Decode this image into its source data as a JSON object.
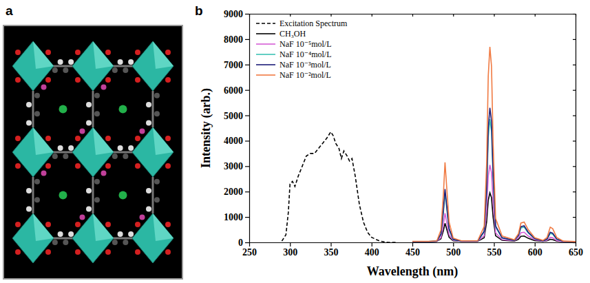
{
  "panel_labels": [
    "a",
    "b"
  ],
  "chart_data": {
    "type": "line",
    "x_label": "Wavelength (nm)",
    "y_label": "Intensity (arb.)",
    "xlim": [
      250,
      650
    ],
    "xticks": [
      250,
      300,
      350,
      400,
      450,
      500,
      550,
      600,
      650
    ],
    "ylim": [
      0,
      9000
    ],
    "yticks": [
      0,
      1000,
      2000,
      3000,
      4000,
      5000,
      6000,
      7000,
      8000,
      9000
    ],
    "grid": false,
    "legend": "upper left",
    "series": [
      {
        "name": "Excitation Spectrum",
        "color": "#000000",
        "line_style": "dashed",
        "x": [
          290,
          295,
          298,
          300,
          303,
          306,
          310,
          315,
          320,
          325,
          330,
          335,
          340,
          345,
          350,
          353,
          356,
          360,
          363,
          366,
          370,
          373,
          376,
          380,
          385,
          390,
          395,
          400,
          410,
          420,
          430
        ],
        "values": [
          50,
          300,
          1200,
          2300,
          2400,
          2200,
          2600,
          3000,
          3400,
          3500,
          3500,
          3700,
          3900,
          4100,
          4350,
          4200,
          3900,
          3700,
          3300,
          3600,
          3400,
          3200,
          3300,
          2600,
          1500,
          800,
          400,
          200,
          50,
          0,
          0
        ]
      },
      {
        "name": "CH₃OH",
        "color": "#000000",
        "line_style": "solid",
        "x": [
          450,
          470,
          480,
          485,
          488,
          490,
          492,
          495,
          500,
          510,
          530,
          538,
          541,
          543,
          545,
          547,
          549,
          552,
          560,
          575,
          580,
          583,
          587,
          592,
          600,
          610,
          615,
          619,
          622,
          627,
          635,
          650
        ],
        "values": [
          30,
          30,
          40,
          140,
          460,
          750,
          530,
          200,
          60,
          40,
          40,
          180,
          800,
          1660,
          1950,
          1760,
          980,
          260,
          80,
          50,
          120,
          240,
          250,
          160,
          70,
          40,
          60,
          120,
          110,
          50,
          30,
          20
        ]
      },
      {
        "name": "NaF 10⁻⁵mol/L",
        "color": "#d65cd6",
        "line_style": "solid",
        "x": [
          450,
          470,
          480,
          485,
          488,
          490,
          492,
          495,
          500,
          510,
          530,
          538,
          541,
          543,
          545,
          547,
          549,
          552,
          560,
          575,
          580,
          583,
          587,
          592,
          600,
          610,
          615,
          619,
          622,
          627,
          635,
          650
        ],
        "values": [
          30,
          30,
          40,
          190,
          700,
          1150,
          810,
          300,
          80,
          40,
          40,
          260,
          1240,
          2600,
          3050,
          2750,
          1530,
          380,
          110,
          60,
          180,
          380,
          400,
          250,
          100,
          50,
          80,
          200,
          180,
          70,
          30,
          20
        ]
      },
      {
        "name": "NaF 10⁻⁴mol/L",
        "color": "#3cc2b4",
        "line_style": "solid",
        "x": [
          450,
          470,
          480,
          485,
          488,
          490,
          492,
          495,
          500,
          510,
          530,
          538,
          541,
          543,
          545,
          547,
          549,
          552,
          560,
          575,
          580,
          583,
          587,
          592,
          600,
          610,
          615,
          619,
          622,
          627,
          635,
          650
        ],
        "values": [
          30,
          30,
          50,
          310,
          1170,
          1950,
          1370,
          500,
          110,
          50,
          50,
          410,
          1950,
          4120,
          4850,
          4370,
          2430,
          600,
          170,
          80,
          260,
          570,
          600,
          370,
          140,
          60,
          120,
          350,
          320,
          120,
          40,
          20
        ]
      },
      {
        "name": "NaF 10⁻³mol/L",
        "color": "#1c1c78",
        "line_style": "solid",
        "x": [
          450,
          470,
          480,
          485,
          488,
          490,
          492,
          495,
          500,
          510,
          530,
          538,
          541,
          543,
          545,
          547,
          549,
          552,
          560,
          575,
          580,
          583,
          587,
          592,
          600,
          610,
          615,
          619,
          622,
          627,
          635,
          650
        ],
        "values": [
          30,
          30,
          50,
          330,
          1260,
          2100,
          1470,
          540,
          120,
          50,
          50,
          440,
          2130,
          4500,
          5300,
          4770,
          2650,
          650,
          180,
          80,
          280,
          620,
          650,
          400,
          150,
          60,
          130,
          400,
          360,
          130,
          40,
          20
        ]
      },
      {
        "name": "NaF 10⁻²mol/L",
        "color": "#f07a42",
        "line_style": "solid",
        "x": [
          450,
          470,
          480,
          485,
          488,
          490,
          492,
          495,
          500,
          510,
          530,
          538,
          541,
          543,
          545,
          547,
          549,
          552,
          560,
          575,
          580,
          583,
          587,
          592,
          600,
          610,
          615,
          619,
          622,
          627,
          635,
          650
        ],
        "values": [
          40,
          40,
          60,
          490,
          1890,
          3150,
          2210,
          800,
          170,
          60,
          60,
          630,
          3090,
          6550,
          7700,
          6930,
          3850,
          940,
          250,
          100,
          340,
          760,
          800,
          500,
          180,
          80,
          190,
          600,
          540,
          190,
          50,
          30
        ]
      }
    ]
  }
}
